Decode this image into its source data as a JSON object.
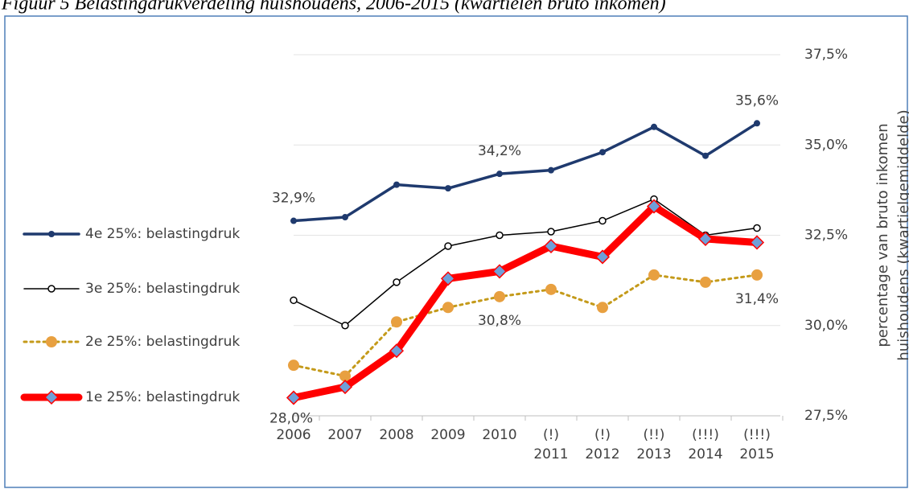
{
  "chart_data": {
    "type": "line",
    "title": "Figuur 5 Belastingdrukverdeling huishoudens, 2006-2015 (kwartielen bruto inkomen)",
    "categories": [
      "2006",
      "2007",
      "2008",
      "2009",
      "2010",
      "(!)\n2011",
      "(!)\n2012",
      "(!!)\n2013",
      "(!!!)\n2014",
      "(!!!)\n2015"
    ],
    "y_axis_label": [
      "percentage van bruto inkomen",
      "huishoudens (kwartielgemiddelde)"
    ],
    "y_axis_side": "right",
    "ylim": [
      27.5,
      37.5
    ],
    "yticks": [
      {
        "value": 27.5,
        "label": "27,5%"
      },
      {
        "value": 30,
        "label": "30,0%"
      },
      {
        "value": 32.5,
        "label": "32,5%"
      },
      {
        "value": 35,
        "label": "35,0%"
      },
      {
        "value": 37.5,
        "label": "37,5%"
      }
    ],
    "grid": true,
    "legend": "left",
    "series": [
      {
        "name": "4e 25%: belastingdruk",
        "color": "#1f3a6e",
        "marker_color": "#1f3a6e",
        "values": [
          32.9,
          33.0,
          33.9,
          33.8,
          34.2,
          34.3,
          34.8,
          35.5,
          34.7,
          35.6
        ],
        "value_labels": [
          "32,9%",
          null,
          null,
          null,
          "34,2%",
          null,
          null,
          null,
          null,
          "35,6%"
        ]
      },
      {
        "name": "3e 25%: belastingdruk",
        "color": "#000000",
        "marker_color": "#ffffff",
        "values": [
          30.7,
          30.0,
          31.2,
          32.2,
          32.5,
          32.6,
          32.9,
          33.5,
          32.5,
          32.7
        ]
      },
      {
        "name": "2e 25%: belastingdruk",
        "color": "#c49a1a",
        "marker_color": "#e8a040",
        "values": [
          28.9,
          28.6,
          30.1,
          30.5,
          30.8,
          31.0,
          30.5,
          31.4,
          31.2,
          31.4
        ],
        "value_labels": [
          null,
          null,
          null,
          null,
          "30,8%",
          null,
          null,
          null,
          null,
          "31,4%"
        ]
      },
      {
        "name": "1e 25%: belastingdruk",
        "color": "#ff0000",
        "marker_color": "#6f9fd8",
        "values": [
          28.0,
          28.3,
          29.3,
          31.3,
          31.5,
          32.2,
          31.9,
          33.3,
          32.4,
          32.3
        ],
        "value_labels": [
          "28,0%",
          null,
          null,
          null,
          null,
          null,
          null,
          null,
          null,
          null
        ]
      }
    ]
  }
}
